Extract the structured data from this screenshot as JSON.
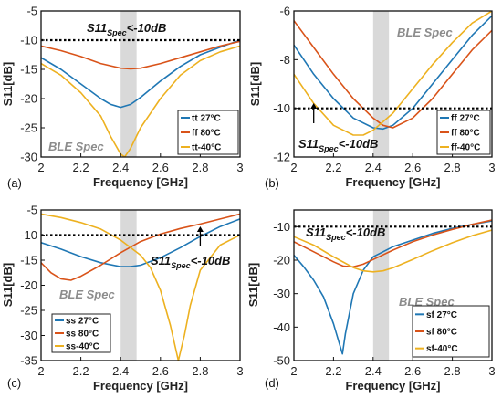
{
  "chart_data": [
    {
      "panel": "(a)",
      "type": "line",
      "xlabel": "Frequency [GHz]",
      "ylabel": "S11[dB]",
      "xlim": [
        2,
        3
      ],
      "ylim": [
        -30,
        -5
      ],
      "xticks": [
        "2",
        "2.2",
        "2.4",
        "2.6",
        "2.8",
        "3"
      ],
      "yticks": [
        "-5",
        "-10",
        "-15",
        "-20",
        "-25",
        "-30"
      ],
      "spec": {
        "text": "S11",
        "sub": "Spec",
        "rest": "<-10dB",
        "value": -10
      },
      "ble_band": {
        "label": "BLE Spec",
        "range": [
          2.4,
          2.48
        ]
      },
      "legend_position": "bottom-right",
      "series": [
        {
          "name": "tt 27°C",
          "color": "#1f77b4",
          "x": [
            2.0,
            2.1,
            2.2,
            2.3,
            2.35,
            2.4,
            2.45,
            2.5,
            2.6,
            2.7,
            2.8,
            2.9,
            3.0
          ],
          "y": [
            -13,
            -15,
            -17.5,
            -20,
            -21,
            -21.5,
            -21,
            -19.8,
            -17,
            -14.5,
            -12.5,
            -11.2,
            -10
          ]
        },
        {
          "name": "ff 80°C",
          "color": "#d95319",
          "x": [
            2.0,
            2.1,
            2.2,
            2.3,
            2.4,
            2.45,
            2.5,
            2.6,
            2.7,
            2.8,
            2.9,
            3.0
          ],
          "y": [
            -11,
            -11.8,
            -12.8,
            -14,
            -14.8,
            -14.9,
            -14.8,
            -14,
            -13,
            -12,
            -11,
            -10.2
          ]
        },
        {
          "name": "tt-40°C",
          "color": "#edb120",
          "x": [
            2.0,
            2.1,
            2.2,
            2.3,
            2.35,
            2.4,
            2.42,
            2.45,
            2.5,
            2.6,
            2.7,
            2.8,
            2.9,
            3.0
          ],
          "y": [
            -14,
            -16,
            -19,
            -23,
            -26.5,
            -29.5,
            -30,
            -28.5,
            -25,
            -20,
            -16,
            -13.5,
            -12,
            -11
          ]
        }
      ]
    },
    {
      "panel": "(b)",
      "type": "line",
      "xlabel": "Frequency [GHz]",
      "ylabel": "S11[dB]",
      "xlim": [
        2,
        3
      ],
      "ylim": [
        -12,
        -6
      ],
      "xticks": [
        "2",
        "2.2",
        "2.4",
        "2.6",
        "2.8",
        "3"
      ],
      "yticks": [
        "-6",
        "-8",
        "-10",
        "-12"
      ],
      "spec": {
        "text": "S11",
        "sub": "Spec",
        "rest": "<-10dB",
        "value": -10
      },
      "ble_band": {
        "label": "BLE Spec",
        "range": [
          2.4,
          2.48
        ]
      },
      "legend_position": "bottom-right",
      "series": [
        {
          "name": "ff 27°C",
          "color": "#1f77b4",
          "x": [
            2.0,
            2.1,
            2.2,
            2.3,
            2.4,
            2.45,
            2.5,
            2.6,
            2.7,
            2.8,
            2.9,
            3.0
          ],
          "y": [
            -7.4,
            -8.6,
            -9.6,
            -10.4,
            -10.8,
            -10.85,
            -10.7,
            -10,
            -9,
            -8,
            -7,
            -6.2
          ]
        },
        {
          "name": "ff 80°C",
          "color": "#d95319",
          "x": [
            2.0,
            2.1,
            2.2,
            2.3,
            2.4,
            2.45,
            2.5,
            2.6,
            2.7,
            2.8,
            2.9,
            3.0
          ],
          "y": [
            -6.4,
            -7.5,
            -8.6,
            -9.6,
            -10.4,
            -10.7,
            -10.8,
            -10.4,
            -9.6,
            -8.6,
            -7.6,
            -6.8
          ]
        },
        {
          "name": "ff-40°C",
          "color": "#edb120",
          "x": [
            2.0,
            2.1,
            2.2,
            2.3,
            2.35,
            2.4,
            2.5,
            2.6,
            2.7,
            2.8,
            2.9,
            3.0
          ],
          "y": [
            -8.6,
            -9.8,
            -10.7,
            -11.1,
            -11.1,
            -10.9,
            -10.2,
            -9.2,
            -8.2,
            -7.3,
            -6.5,
            -6
          ]
        }
      ]
    },
    {
      "panel": "(c)",
      "type": "line",
      "xlabel": "Frequency [GHz]",
      "ylabel": "S11[dB]",
      "xlim": [
        2,
        3
      ],
      "ylim": [
        -35,
        -5
      ],
      "xticks": [
        "2",
        "2.2",
        "2.4",
        "2.6",
        "2.8",
        "3"
      ],
      "yticks": [
        "-5",
        "-10",
        "-15",
        "-20",
        "-25",
        "-30",
        "-35"
      ],
      "spec": {
        "text": "S11",
        "sub": "Spec",
        "rest": "<-10dB",
        "value": -10
      },
      "ble_band": {
        "label": "BLE Spec",
        "range": [
          2.4,
          2.48
        ]
      },
      "legend_position": "bottom-left",
      "series": [
        {
          "name": "ss 27°C",
          "color": "#1f77b4",
          "x": [
            2.0,
            2.1,
            2.2,
            2.3,
            2.4,
            2.45,
            2.5,
            2.6,
            2.7,
            2.8,
            2.9,
            3.0
          ],
          "y": [
            -11.5,
            -12.8,
            -14.3,
            -15.5,
            -16.3,
            -16.3,
            -16,
            -14.5,
            -12.5,
            -10.3,
            -8.3,
            -6.8
          ]
        },
        {
          "name": "ss 80°C",
          "color": "#d95319",
          "x": [
            2.0,
            2.05,
            2.1,
            2.15,
            2.2,
            2.3,
            2.4,
            2.5,
            2.6,
            2.7,
            2.8,
            2.9,
            3.0
          ],
          "y": [
            -15.5,
            -17.5,
            -18.7,
            -19,
            -18.2,
            -16,
            -13.5,
            -11.3,
            -9.8,
            -8.7,
            -7.8,
            -6.8,
            -5.8
          ]
        },
        {
          "name": "ss-40°C",
          "color": "#edb120",
          "x": [
            2.0,
            2.1,
            2.2,
            2.3,
            2.4,
            2.5,
            2.55,
            2.6,
            2.65,
            2.69,
            2.72,
            2.75,
            2.8,
            2.9,
            3.0
          ],
          "y": [
            -5.8,
            -6.5,
            -7.5,
            -8.8,
            -11,
            -14,
            -16.5,
            -21,
            -28,
            -35,
            -30,
            -24,
            -17,
            -12,
            -10
          ]
        }
      ]
    },
    {
      "panel": "(d)",
      "type": "line",
      "xlabel": "Frequency [GHz]",
      "ylabel": "S11[dB]",
      "xlim": [
        2,
        3
      ],
      "ylim": [
        -50,
        -5
      ],
      "xticks": [
        "2",
        "2.2",
        "2.4",
        "2.6",
        "2.8",
        "3"
      ],
      "yticks": [
        "-10",
        "-20",
        "-30",
        "-40",
        "-50"
      ],
      "spec": {
        "text": "S11",
        "sub": "Spec",
        "rest": "<-10dB",
        "value": -10
      },
      "ble_band": {
        "label": "BLE Spec",
        "range": [
          2.4,
          2.48
        ]
      },
      "legend_position": "bottom-right",
      "series": [
        {
          "name": "sf 27°C",
          "color": "#1f77b4",
          "x": [
            2.0,
            2.05,
            2.1,
            2.15,
            2.2,
            2.23,
            2.245,
            2.26,
            2.3,
            2.35,
            2.4,
            2.5,
            2.6,
            2.7,
            2.8,
            2.9,
            3.0
          ],
          "y": [
            -18.5,
            -22,
            -26,
            -31,
            -39,
            -45,
            -48,
            -42,
            -30,
            -23,
            -19,
            -16,
            -14,
            -12,
            -10.5,
            -9.3,
            -8.3
          ]
        },
        {
          "name": "sf 80°C",
          "color": "#d95319",
          "x": [
            2.0,
            2.1,
            2.2,
            2.25,
            2.3,
            2.35,
            2.4,
            2.5,
            2.6,
            2.7,
            2.8,
            2.9,
            3.0
          ],
          "y": [
            -14.5,
            -17.5,
            -20.5,
            -21.8,
            -22,
            -21.2,
            -19.8,
            -17,
            -14.5,
            -12.5,
            -10.8,
            -9.3,
            -8
          ]
        },
        {
          "name": "sf-40°C",
          "color": "#edb120",
          "x": [
            2.0,
            2.1,
            2.2,
            2.3,
            2.35,
            2.4,
            2.45,
            2.5,
            2.6,
            2.7,
            2.8,
            2.9,
            3.0
          ],
          "y": [
            -13,
            -15.5,
            -19,
            -22.2,
            -23.2,
            -23.5,
            -23.2,
            -22.3,
            -19.8,
            -17.2,
            -14.8,
            -12.7,
            -11
          ]
        }
      ]
    }
  ]
}
